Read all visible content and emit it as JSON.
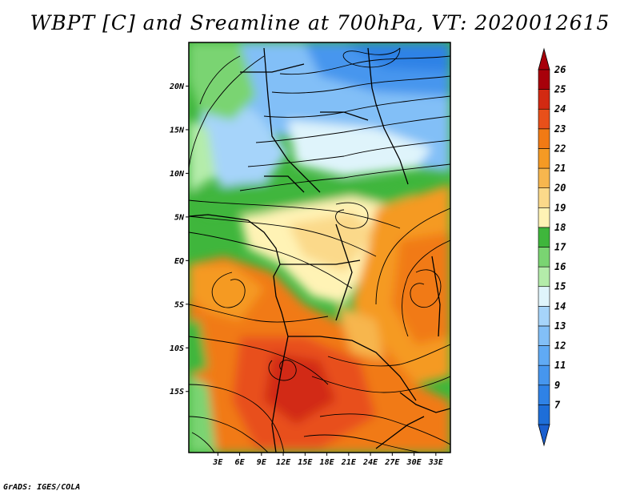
{
  "title": "WBPT [C] and Sreamline at 700hPa, VT: 2020012615",
  "credit": "GrADS: IGES/COLA",
  "map": {
    "lon_range": [
      -1,
      35
    ],
    "lat_range": [
      -22,
      25
    ],
    "lat_ticks": [
      {
        "value": 20,
        "label": "20N"
      },
      {
        "value": 15,
        "label": "15N"
      },
      {
        "value": 10,
        "label": "10N"
      },
      {
        "value": 5,
        "label": "5N"
      },
      {
        "value": 0,
        "label": "EQ"
      },
      {
        "value": -5,
        "label": "5S"
      },
      {
        "value": -10,
        "label": "10S"
      },
      {
        "value": -15,
        "label": "15S"
      }
    ],
    "lon_ticks": [
      {
        "value": 3,
        "label": "3E"
      },
      {
        "value": 6,
        "label": "6E"
      },
      {
        "value": 9,
        "label": "9E"
      },
      {
        "value": 12,
        "label": "12E"
      },
      {
        "value": 15,
        "label": "15E"
      },
      {
        "value": 18,
        "label": "18E"
      },
      {
        "value": 21,
        "label": "21E"
      },
      {
        "value": 24,
        "label": "24E"
      },
      {
        "value": 27,
        "label": "27E"
      },
      {
        "value": 30,
        "label": "30E"
      },
      {
        "value": 33,
        "label": "33E"
      }
    ]
  },
  "colorbar": {
    "levels": [
      {
        "label": "7",
        "color": "#1e6ed8"
      },
      {
        "label": "9",
        "color": "#2f82e6"
      },
      {
        "label": "11",
        "color": "#4696ee"
      },
      {
        "label": "12",
        "color": "#60aaf4"
      },
      {
        "label": "13",
        "color": "#82bff7"
      },
      {
        "label": "14",
        "color": "#a6d4fa"
      },
      {
        "label": "15",
        "color": "#dff4fb"
      },
      {
        "label": "16",
        "color": "#b4ecaa"
      },
      {
        "label": "17",
        "color": "#7ad472"
      },
      {
        "label": "18",
        "color": "#3fb63c"
      },
      {
        "label": "19",
        "color": "#fff3b5"
      },
      {
        "label": "20",
        "color": "#fbd98a"
      },
      {
        "label": "21",
        "color": "#f7b64e"
      },
      {
        "label": "22",
        "color": "#f59a24"
      },
      {
        "label": "23",
        "color": "#f17a14"
      },
      {
        "label": "24",
        "color": "#e8501a"
      },
      {
        "label": "25",
        "color": "#d22a12"
      },
      {
        "label": "26",
        "color": "#a8000a"
      }
    ],
    "under_color": "#1a5fcf",
    "over_color": "#a8000a"
  }
}
